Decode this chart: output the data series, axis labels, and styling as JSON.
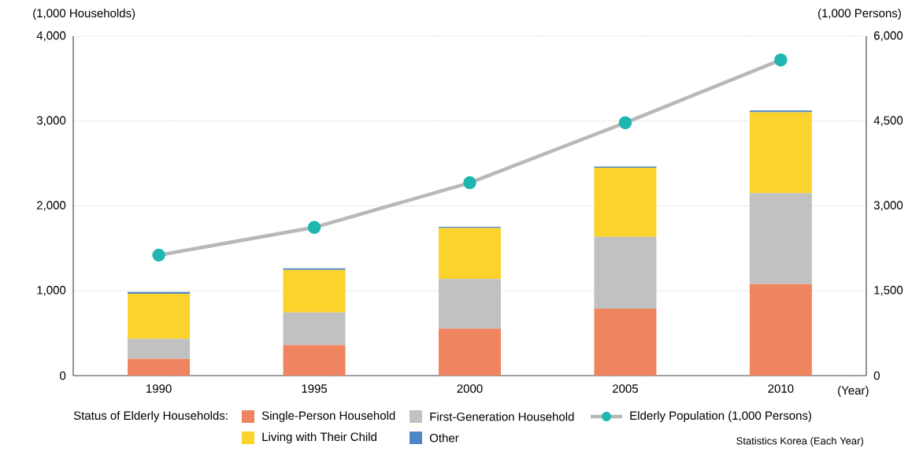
{
  "chart_data": {
    "type": "bar",
    "stacked": true,
    "categories": [
      "1990",
      "1995",
      "2000",
      "2005",
      "2010"
    ],
    "xlabel": "(Year)",
    "ylabel": "(1,000 Households)",
    "y2label": "(1,000 Persons)",
    "legend_title": "Status of Elderly Households:",
    "series": [
      {
        "name": "Single-Person Household",
        "color": "#ef8560",
        "values": [
          200,
          360,
          555,
          790,
          1080
        ]
      },
      {
        "name": "First-Generation Household",
        "color": "#c0c1c0",
        "values": [
          235,
          385,
          585,
          845,
          1070
        ]
      },
      {
        "name": "Living with Their Child",
        "color": "#fcd22c",
        "values": [
          530,
          500,
          600,
          815,
          955
        ]
      },
      {
        "name": "Other",
        "color": "#4e86c6",
        "values": [
          20,
          20,
          15,
          15,
          20
        ]
      },
      {
        "name": "Elderly Population (1,000 Persons)",
        "type": "line",
        "axis": "y2",
        "color": "#1fb5b0",
        "values": [
          2130,
          2620,
          3410,
          4470,
          5580
        ]
      }
    ],
    "ylim": [
      0,
      4000
    ],
    "yticks": [
      0,
      {
        "value": 1000,
        "label": "1,000"
      },
      {
        "value": 2000,
        "label": "2,000"
      },
      {
        "value": 3000,
        "label": "3,000"
      },
      {
        "value": 4000,
        "label": "4,000"
      }
    ],
    "y2lim": [
      0,
      6000
    ],
    "y2ticks": [
      0,
      {
        "value": 1500,
        "label": "1,500"
      },
      {
        "value": 3000,
        "label": "3,000"
      },
      {
        "value": 4500,
        "label": "4,500"
      },
      {
        "value": 6000,
        "label": "6,000"
      }
    ],
    "grid": "y",
    "legend": "bottom",
    "marker": "circle",
    "annotations": [
      "Statistics Korea (Each Year)"
    ]
  }
}
